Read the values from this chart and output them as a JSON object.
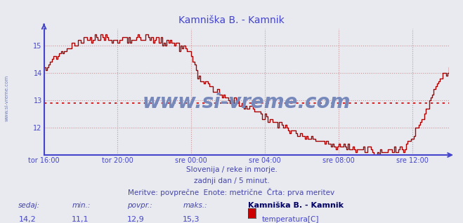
{
  "title": "Kamniška B. - Kamnik",
  "title_color": "#4444cc",
  "bg_color": "#e8eaf0",
  "plot_bg_color": "#e8eaf0",
  "line_color": "#aa0000",
  "avg_line_color": "#cc0000",
  "avg_value": 12.9,
  "y_min": 11.0,
  "y_max": 15.6,
  "y_ticks": [
    12,
    13,
    14,
    15
  ],
  "x_labels": [
    "tor 16:00",
    "tor 20:00",
    "sre 00:00",
    "sre 04:00",
    "sre 08:00",
    "sre 12:00"
  ],
  "grid_color": "#cc8888",
  "axis_color": "#4444cc",
  "watermark": "www.si-vreme.com",
  "watermark_color": "#7788bb",
  "side_text": "www.si-vreme.com",
  "subtitle1": "Slovenija / reke in morje.",
  "subtitle2": "zadnji dan / 5 minut.",
  "subtitle3": "Meritve: povprečne  Enote: metrične  Črta: prva meritev",
  "subtitle_color": "#4444aa",
  "footer_label_color": "#4444aa",
  "footer_value_color": "#4444cc",
  "sedaj": "14,2",
  "min_val": "11,1",
  "povpr": "12,9",
  "maks": "15,3",
  "legend_station": "Kamniška B. - Kamnik",
  "legend_param": "temperatura[C]",
  "legend_color": "#cc0000"
}
